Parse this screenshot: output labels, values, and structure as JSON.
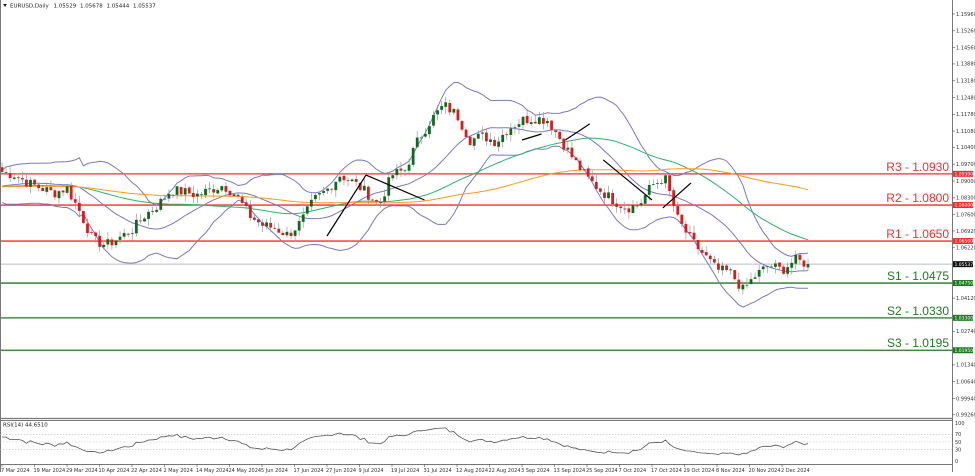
{
  "header": {
    "symbol_label": "EURUSD,Daily",
    "open": "1.05529",
    "high": "1.05678",
    "low": "1.05444",
    "close": "1.05537"
  },
  "rsi": {
    "label": "RSI(14) 44.6510",
    "levels": [
      "100",
      "70",
      "50",
      "30",
      "0"
    ]
  },
  "colors": {
    "bull": "#0e6b1e",
    "bear": "#e0191b",
    "resistance": "#ff2a2a",
    "support": "#1f7a1f",
    "bands": "#7878c8",
    "ma_fast": "#2eb36a",
    "ma_slow": "#ff9a1a",
    "current_price": "#b8bcc4"
  },
  "chart_data": {
    "type": "candlestick",
    "symbol": "EURUSD",
    "timeframe": "Daily",
    "ylim": [
      0.9926,
      1.1596
    ],
    "y_ticks": [
      "1.15960",
      "1.15260",
      "1.14560",
      "1.13880",
      "1.13180",
      "1.12480",
      "1.11780",
      "1.11080",
      "1.10400",
      "1.09700",
      "1.09000",
      "1.08300",
      "1.07600",
      "1.06920",
      "1.06220",
      "1.04120",
      "1.02740",
      "1.01340",
      "1.00640",
      "0.99940",
      "0.99260"
    ],
    "x_ticks": [
      "7 Mar 2024",
      "19 Mar 2024",
      "29 Mar 2024",
      "10 Apr 2024",
      "22 Apr 2024",
      "2 May 2024",
      "14 May 2024",
      "24 May 2024",
      "5 Jun 2024",
      "17 Jun 2024",
      "27 Jun 2024",
      "9 Jul 2024",
      "19 Jul 2024",
      "31 Jul 2024",
      "12 Aug 2024",
      "22 Aug 2024",
      "3 Sep 2024",
      "13 Sep 2024",
      "25 Sep 2024",
      "7 Oct 2024",
      "17 Oct 2024",
      "29 Oct 2024",
      "8 Nov 2024",
      "20 Nov 2024",
      "2 Dec 2024"
    ],
    "close_path": [
      1.0938,
      1.0925,
      1.0892,
      1.0871,
      1.085,
      1.0871,
      1.0771,
      1.0654,
      1.0633,
      1.0663,
      1.0696,
      1.0758,
      1.08,
      1.0863,
      1.0854,
      1.0842,
      1.0863,
      1.0883,
      1.0842,
      1.0758,
      1.0717,
      1.0704,
      1.0675,
      1.0729,
      1.0821,
      1.0863,
      1.0925,
      1.0896,
      1.0854,
      1.08,
      1.0925,
      1.0946,
      1.1071,
      1.1154,
      1.1217,
      1.1175,
      1.1071,
      1.1088,
      1.1063,
      1.1121,
      1.1154,
      1.1163,
      1.1154,
      1.1071,
      1.0988,
      1.0913,
      1.0863,
      1.0821,
      1.0788,
      1.08,
      1.0883,
      1.0913,
      1.0738,
      1.0654,
      1.0592,
      1.0529,
      1.0521,
      1.0446,
      1.0508,
      1.055,
      1.0529,
      1.0571,
      1.05537
    ],
    "current_price": 1.05537,
    "levels": [
      {
        "name": "R3",
        "label": "R3 - 1.0930",
        "price": 1.093,
        "tag": "1.09300",
        "kind": "resistance"
      },
      {
        "name": "R2",
        "label": "R2 - 1.0800",
        "price": 1.08,
        "tag": "1.08000",
        "kind": "resistance"
      },
      {
        "name": "R1",
        "label": "R1 - 1.0650",
        "price": 1.065,
        "tag": "1.06500",
        "kind": "resistance"
      },
      {
        "name": "S1",
        "label": "S1 - 1.0475",
        "price": 1.0475,
        "tag": "1.04750",
        "kind": "support"
      },
      {
        "name": "S2",
        "label": "S2 - 1.0330",
        "price": 1.033,
        "tag": "1.03300",
        "kind": "support"
      },
      {
        "name": "S3",
        "label": "S3 - 1.0195",
        "price": 1.0195,
        "tag": "1.01950",
        "kind": "support"
      }
    ],
    "current_tag": "1.05537",
    "indicators": [
      "Bollinger Bands (20)",
      "Moving Average (50)",
      "Moving Average (100)",
      "RSI (14)"
    ],
    "trendlines": [
      {
        "from": [
          "27 Jun 2024",
          1.0671
        ],
        "to": [
          "11 Jul 2024",
          1.0925
        ]
      },
      {
        "from": [
          "11 Jul 2024",
          1.0925
        ],
        "to": [
          "31 Jul 2024",
          1.0821
        ]
      },
      {
        "from": [
          "3 Sep 2024",
          1.1071
        ],
        "to": [
          "9 Sep 2024",
          1.1096
        ]
      },
      {
        "from": [
          "17 Sep 2024",
          1.1071
        ],
        "to": [
          "26 Sep 2024",
          1.1138
        ]
      },
      {
        "from": [
          "1 Oct 2024",
          1.0988
        ],
        "to": [
          "17 Oct 2024",
          1.0821
        ]
      },
      {
        "from": [
          "21 Oct 2024",
          1.0788
        ],
        "to": [
          "31 Oct 2024",
          1.0892
        ]
      }
    ]
  }
}
